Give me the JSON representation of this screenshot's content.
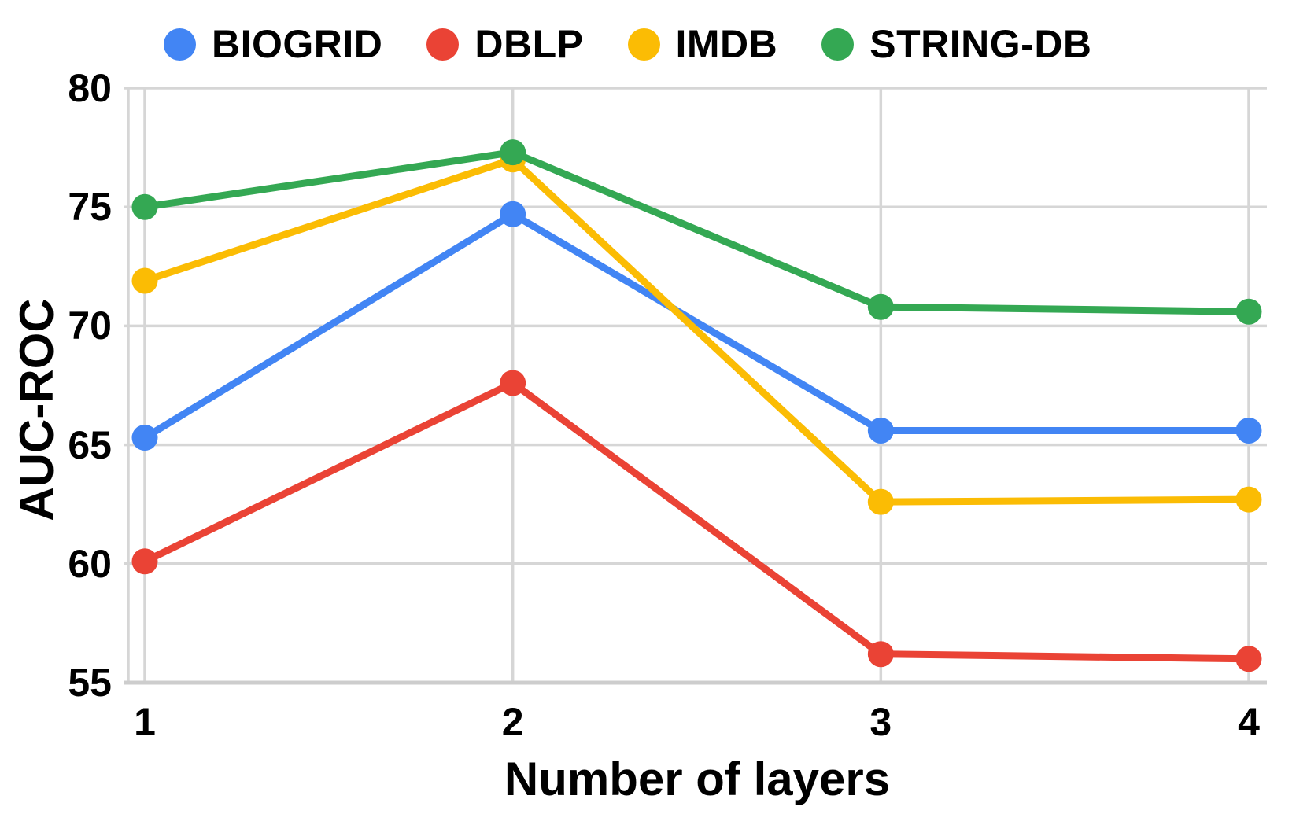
{
  "chart_data": {
    "type": "line",
    "title": "",
    "xlabel": "Number of layers",
    "ylabel": "AUC-ROC",
    "categories": [
      1,
      2,
      3,
      4
    ],
    "series": [
      {
        "name": "BIOGRID",
        "color": "#4285F4",
        "values": [
          65.3,
          74.7,
          65.6,
          65.6
        ]
      },
      {
        "name": "DBLP",
        "color": "#EA4335",
        "values": [
          60.1,
          67.6,
          56.2,
          56.0
        ]
      },
      {
        "name": "IMDB",
        "color": "#FBBC04",
        "values": [
          71.9,
          77.0,
          62.6,
          62.7
        ]
      },
      {
        "name": "STRING-DB",
        "color": "#34A853",
        "values": [
          75.0,
          77.3,
          70.8,
          70.6
        ]
      }
    ],
    "ylim": [
      55,
      80
    ],
    "yticks": [
      55,
      60,
      65,
      70,
      75,
      80
    ],
    "xticks": [
      1,
      2,
      3,
      4
    ],
    "grid": true,
    "legend_position": "top",
    "colors": {
      "gridline": "#d6d6d6",
      "axis": "#cdcdcd",
      "text": "#000000",
      "background": "#ffffff"
    }
  }
}
